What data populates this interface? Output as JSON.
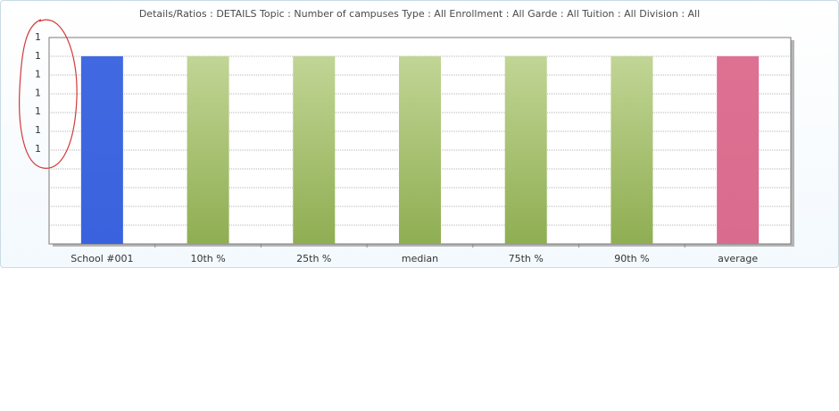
{
  "chart_data": {
    "type": "bar",
    "title": "Details/Ratios : DETAILS Topic : Number of campuses Type : All Enrollment : All Garde : All Tuition : All Division : All",
    "xlabel": "",
    "ylabel": "",
    "categories": [
      "School #001",
      "10th %",
      "25th %",
      "median",
      "75th %",
      "90th %",
      "average"
    ],
    "values": [
      1,
      1,
      1,
      1,
      1,
      1,
      1
    ],
    "ylim": [
      0,
      1.1
    ],
    "y_tick_labels": [
      "1",
      "1",
      "1",
      "1",
      "1",
      "1",
      "1"
    ],
    "grid": true,
    "bar_colors": [
      "#4169e1",
      "#9bb86a",
      "#9bb86a",
      "#9bb86a",
      "#9bb86a",
      "#9bb86a",
      "#dc6f92"
    ],
    "annotation": "red hand-drawn ellipse circling the y-axis tick labels"
  }
}
